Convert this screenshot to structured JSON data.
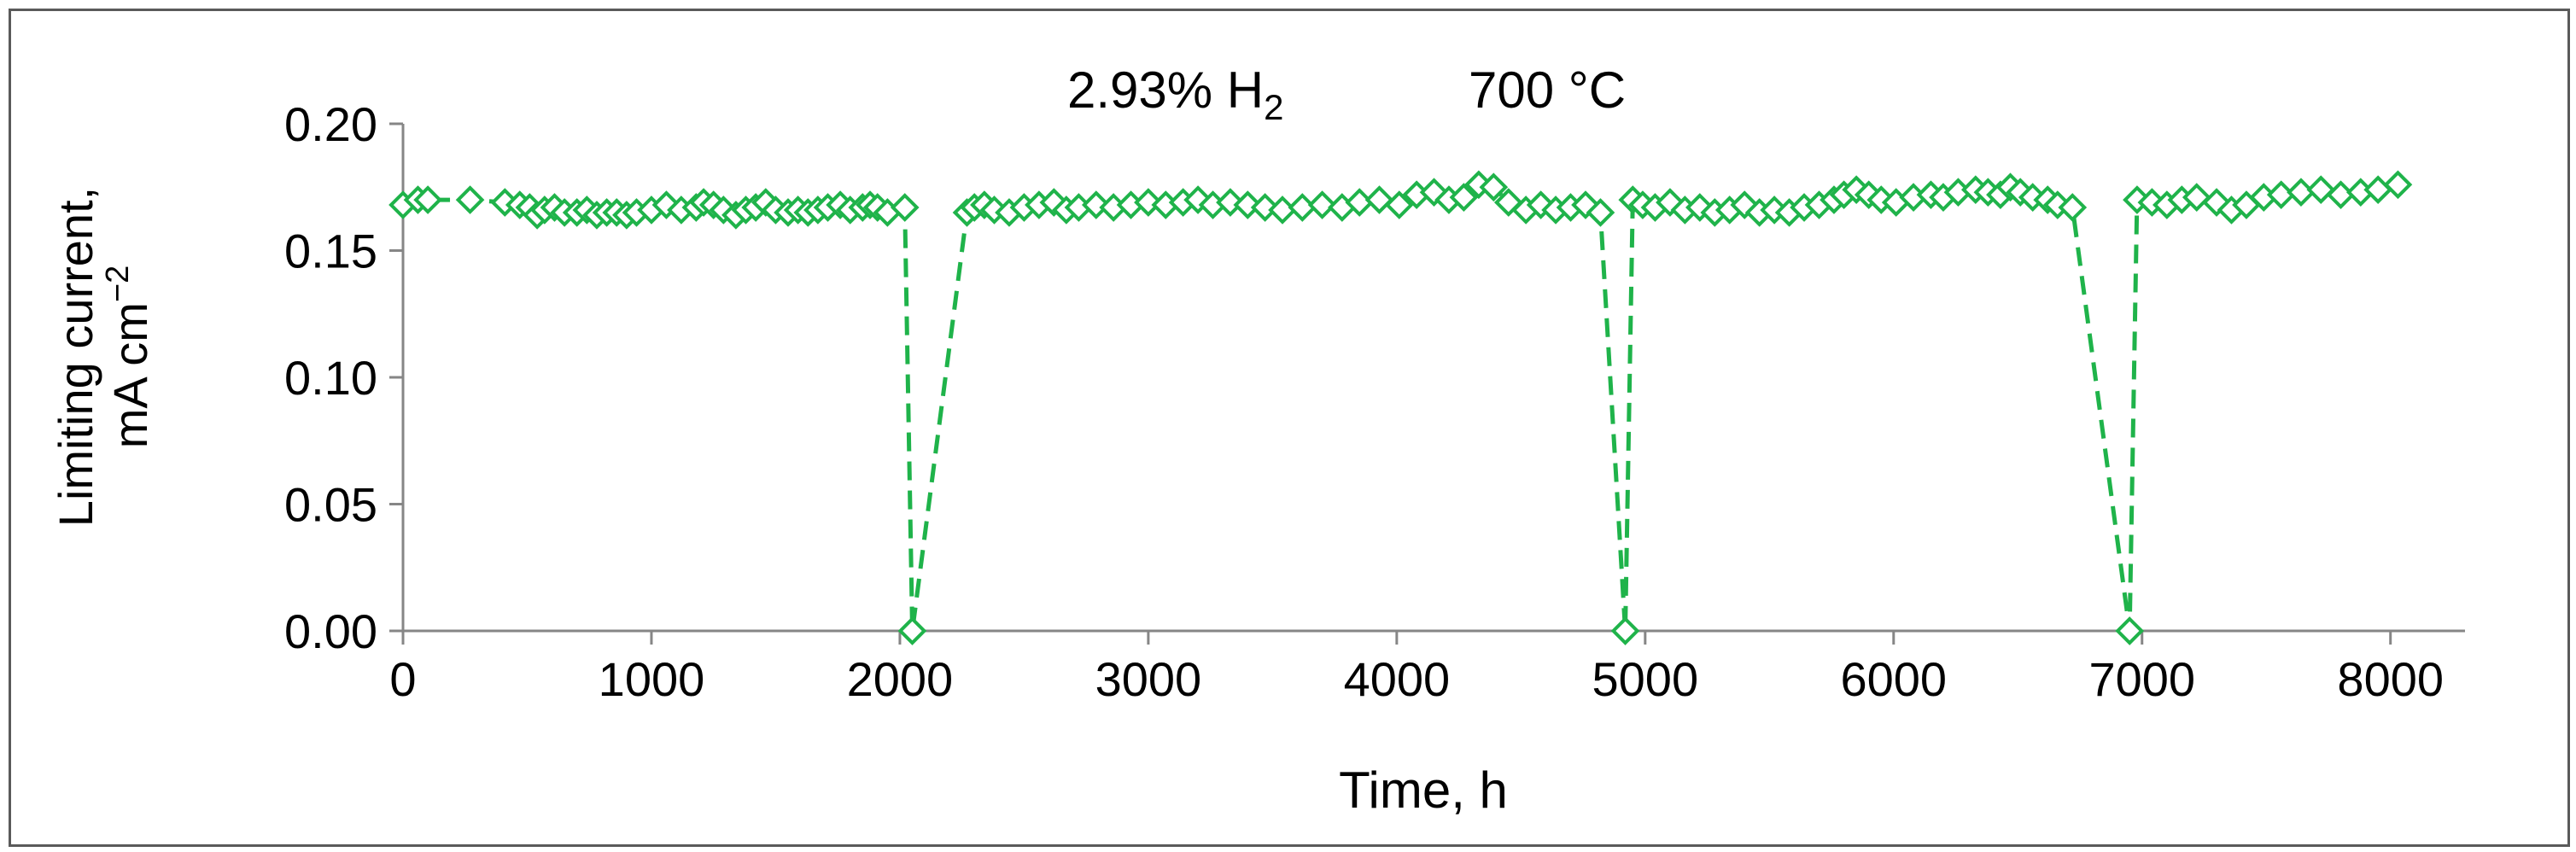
{
  "chart_data": {
    "type": "scatter",
    "title_parts": {
      "conc": "2.93% H",
      "sub": "2",
      "temp": "700 °C"
    },
    "xlabel": "Time, h",
    "ylabel_line1": "Limiting current,",
    "ylabel_line2": "mA cm",
    "ylabel_sup": "−2",
    "xlim": [
      0,
      8300
    ],
    "ylim": [
      0,
      0.2
    ],
    "x_ticks": [
      0,
      1000,
      2000,
      3000,
      4000,
      5000,
      6000,
      7000,
      8000
    ],
    "x_tick_labels": [
      "0",
      "1000",
      "2000",
      "3000",
      "4000",
      "5000",
      "6000",
      "7000",
      "8000"
    ],
    "y_ticks": [
      0,
      0.05,
      0.1,
      0.15,
      0.2
    ],
    "y_tick_labels": [
      "0.00",
      "0.05",
      "0.10",
      "0.15",
      "0.20"
    ],
    "series_color": "#1fb34a",
    "series": [
      {
        "name": "Limiting current",
        "marker": "diamond",
        "points": [
          [
            0,
            0.168
          ],
          [
            60,
            0.17
          ],
          [
            100,
            0.17
          ],
          [
            270,
            0.17
          ],
          [
            410,
            0.169
          ],
          [
            470,
            0.168
          ],
          [
            510,
            0.167
          ],
          [
            540,
            0.164
          ],
          [
            570,
            0.166
          ],
          [
            610,
            0.167
          ],
          [
            650,
            0.165
          ],
          [
            700,
            0.165
          ],
          [
            740,
            0.166
          ],
          [
            780,
            0.164
          ],
          [
            820,
            0.165
          ],
          [
            860,
            0.165
          ],
          [
            900,
            0.164
          ],
          [
            940,
            0.165
          ],
          [
            1000,
            0.166
          ],
          [
            1060,
            0.168
          ],
          [
            1120,
            0.166
          ],
          [
            1180,
            0.167
          ],
          [
            1210,
            0.169
          ],
          [
            1250,
            0.168
          ],
          [
            1290,
            0.166
          ],
          [
            1340,
            0.164
          ],
          [
            1380,
            0.166
          ],
          [
            1420,
            0.167
          ],
          [
            1460,
            0.169
          ],
          [
            1500,
            0.166
          ],
          [
            1550,
            0.165
          ],
          [
            1590,
            0.166
          ],
          [
            1630,
            0.165
          ],
          [
            1670,
            0.166
          ],
          [
            1710,
            0.167
          ],
          [
            1760,
            0.168
          ],
          [
            1800,
            0.166
          ],
          [
            1850,
            0.167
          ],
          [
            1880,
            0.168
          ],
          [
            1910,
            0.167
          ],
          [
            1950,
            0.165
          ],
          [
            2020,
            0.167
          ],
          [
            2050,
            0.0
          ],
          [
            2270,
            0.165
          ],
          [
            2300,
            0.167
          ],
          [
            2340,
            0.168
          ],
          [
            2380,
            0.166
          ],
          [
            2440,
            0.165
          ],
          [
            2500,
            0.167
          ],
          [
            2560,
            0.168
          ],
          [
            2620,
            0.169
          ],
          [
            2670,
            0.166
          ],
          [
            2720,
            0.167
          ],
          [
            2790,
            0.168
          ],
          [
            2860,
            0.167
          ],
          [
            2930,
            0.168
          ],
          [
            3000,
            0.169
          ],
          [
            3070,
            0.168
          ],
          [
            3140,
            0.169
          ],
          [
            3200,
            0.17
          ],
          [
            3260,
            0.168
          ],
          [
            3330,
            0.169
          ],
          [
            3400,
            0.168
          ],
          [
            3470,
            0.167
          ],
          [
            3540,
            0.166
          ],
          [
            3620,
            0.167
          ],
          [
            3700,
            0.168
          ],
          [
            3780,
            0.167
          ],
          [
            3850,
            0.169
          ],
          [
            3930,
            0.17
          ],
          [
            4010,
            0.168
          ],
          [
            4080,
            0.172
          ],
          [
            4150,
            0.173
          ],
          [
            4210,
            0.17
          ],
          [
            4270,
            0.171
          ],
          [
            4330,
            0.176
          ],
          [
            4390,
            0.175
          ],
          [
            4450,
            0.169
          ],
          [
            4520,
            0.166
          ],
          [
            4580,
            0.168
          ],
          [
            4640,
            0.166
          ],
          [
            4700,
            0.167
          ],
          [
            4760,
            0.168
          ],
          [
            4820,
            0.165
          ],
          [
            4920,
            0.0
          ],
          [
            4950,
            0.17
          ],
          [
            4990,
            0.168
          ],
          [
            5040,
            0.167
          ],
          [
            5100,
            0.169
          ],
          [
            5160,
            0.166
          ],
          [
            5220,
            0.167
          ],
          [
            5280,
            0.165
          ],
          [
            5340,
            0.166
          ],
          [
            5400,
            0.168
          ],
          [
            5460,
            0.165
          ],
          [
            5520,
            0.166
          ],
          [
            5580,
            0.165
          ],
          [
            5640,
            0.167
          ],
          [
            5700,
            0.168
          ],
          [
            5760,
            0.17
          ],
          [
            5800,
            0.172
          ],
          [
            5850,
            0.174
          ],
          [
            5900,
            0.172
          ],
          [
            5950,
            0.17
          ],
          [
            6010,
            0.169
          ],
          [
            6080,
            0.171
          ],
          [
            6150,
            0.172
          ],
          [
            6200,
            0.171
          ],
          [
            6260,
            0.173
          ],
          [
            6330,
            0.174
          ],
          [
            6380,
            0.173
          ],
          [
            6430,
            0.172
          ],
          [
            6470,
            0.175
          ],
          [
            6510,
            0.173
          ],
          [
            6560,
            0.171
          ],
          [
            6620,
            0.17
          ],
          [
            6660,
            0.168
          ],
          [
            6720,
            0.167
          ],
          [
            6950,
            0.0
          ],
          [
            6980,
            0.17
          ],
          [
            7040,
            0.169
          ],
          [
            7100,
            0.168
          ],
          [
            7160,
            0.17
          ],
          [
            7220,
            0.171
          ],
          [
            7300,
            0.169
          ],
          [
            7360,
            0.166
          ],
          [
            7420,
            0.168
          ],
          [
            7490,
            0.171
          ],
          [
            7560,
            0.172
          ],
          [
            7640,
            0.173
          ],
          [
            7720,
            0.174
          ],
          [
            7800,
            0.172
          ],
          [
            7880,
            0.173
          ],
          [
            7950,
            0.174
          ],
          [
            8030,
            0.176
          ]
        ]
      }
    ]
  }
}
